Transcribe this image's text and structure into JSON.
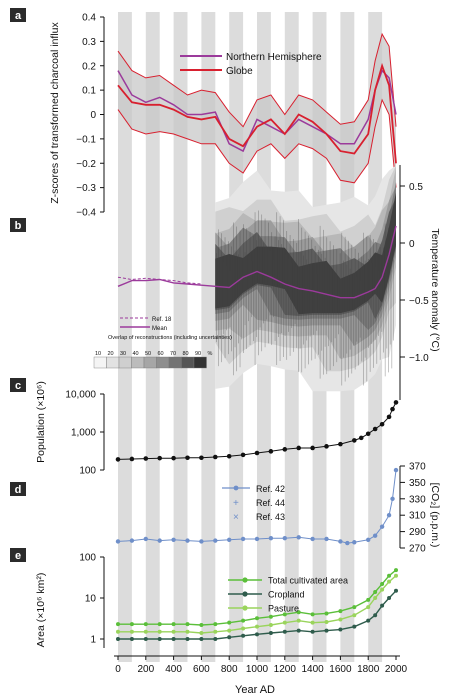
{
  "colors": {
    "nh": "#9b3a9b",
    "globe": "#d8202f",
    "band": "#c8c8c8",
    "pop": "#111111",
    "co2": "#6f8fc9",
    "total": "#5bbf3a",
    "crop": "#2f5c4c",
    "pasture": "#9ad45c",
    "panel_label_bg": "#2b2b2b",
    "stripe": "#dcdcdc"
  },
  "chart_data": [
    {
      "panel": "a",
      "type": "line",
      "ylabel": "Z-scores of transformed charcoal influx",
      "ylim": [
        -0.4,
        0.4
      ],
      "yticks": [
        "0.4",
        "0.3",
        "0.2",
        "0.1",
        "0",
        "−0.1",
        "−0.2",
        "−0.3",
        "−0.4"
      ],
      "legend": [
        "Northern Hemisphere",
        "Globe"
      ],
      "x": [
        0,
        100,
        200,
        300,
        400,
        500,
        600,
        700,
        800,
        900,
        1000,
        1100,
        1200,
        1300,
        1400,
        1500,
        1600,
        1700,
        1800,
        1850,
        1900,
        1950,
        2000
      ],
      "series": [
        {
          "name": "Northern Hemisphere",
          "values": [
            0.18,
            0.08,
            0.05,
            0.07,
            0.04,
            0.0,
            0.0,
            0.01,
            -0.12,
            -0.15,
            -0.02,
            -0.05,
            -0.08,
            -0.02,
            -0.05,
            -0.08,
            -0.12,
            -0.12,
            -0.02,
            0.1,
            0.18,
            0.15,
            0.0
          ]
        },
        {
          "name": "Globe",
          "values": [
            0.12,
            0.05,
            0.04,
            0.04,
            0.02,
            -0.01,
            -0.02,
            -0.01,
            -0.1,
            -0.13,
            -0.05,
            -0.02,
            -0.08,
            0.0,
            -0.03,
            -0.08,
            -0.15,
            -0.16,
            -0.08,
            0.1,
            0.2,
            0.12,
            -0.2
          ]
        },
        {
          "name": "upper",
          "values": [
            0.26,
            0.18,
            0.15,
            0.16,
            0.12,
            0.08,
            0.1,
            0.09,
            0.01,
            -0.05,
            0.06,
            0.08,
            0.0,
            0.08,
            0.06,
            0.01,
            -0.04,
            -0.03,
            0.06,
            0.22,
            0.33,
            0.28,
            -0.05
          ]
        },
        {
          "name": "lower",
          "values": [
            0.02,
            -0.06,
            -0.08,
            -0.07,
            -0.08,
            -0.1,
            -0.12,
            -0.12,
            -0.2,
            -0.24,
            -0.15,
            -0.12,
            -0.18,
            -0.12,
            -0.14,
            -0.18,
            -0.27,
            -0.28,
            -0.2,
            -0.05,
            0.06,
            0.0,
            -0.3
          ]
        }
      ]
    },
    {
      "panel": "b",
      "type": "area",
      "ylabel": "Temperature anomaly (°C)",
      "ylim": [
        -1.3,
        0.7
      ],
      "yticks": [
        "0.5",
        "0",
        "−0.5",
        "−1.0"
      ],
      "legend_ref": "Ref. 18",
      "legend_mean": "Mean",
      "legend_overlap": "Overlap of reconstructions (including uncertainties)",
      "scale_labels": [
        "10",
        "20",
        "30",
        "40",
        "50",
        "60",
        "70",
        "80",
        "90",
        "%"
      ],
      "x": [
        0,
        100,
        200,
        300,
        400,
        500,
        600,
        700,
        800,
        900,
        1000,
        1100,
        1200,
        1300,
        1400,
        1500,
        1600,
        1700,
        1800,
        1850,
        1900,
        1950,
        2000
      ],
      "mean": [
        -0.38,
        -0.33,
        -0.33,
        -0.32,
        -0.35,
        -0.36,
        -0.37,
        -0.38,
        -0.39,
        -0.3,
        -0.25,
        -0.3,
        -0.36,
        -0.4,
        -0.42,
        -0.45,
        -0.48,
        -0.48,
        -0.43,
        -0.4,
        -0.3,
        -0.1,
        0.15
      ]
    },
    {
      "panel": "c",
      "type": "scatter",
      "ylabel": "Population (×10⁶)",
      "scale": "log",
      "ylim": [
        100,
        10000
      ],
      "yticks": [
        "10,000",
        "1,000",
        "100"
      ],
      "x": [
        0,
        100,
        200,
        300,
        400,
        500,
        600,
        700,
        800,
        900,
        1000,
        1100,
        1200,
        1300,
        1400,
        1500,
        1600,
        1700,
        1750,
        1800,
        1850,
        1900,
        1950,
        1975,
        2000
      ],
      "values": [
        190,
        195,
        200,
        205,
        205,
        210,
        210,
        220,
        230,
        250,
        280,
        310,
        350,
        380,
        380,
        420,
        480,
        600,
        700,
        900,
        1200,
        1600,
        2500,
        4000,
        6000
      ]
    },
    {
      "panel": "d",
      "type": "scatter",
      "ylabel": "[CO₂] (p.p.m.)",
      "ylim": [
        270,
        370
      ],
      "yticks": [
        "370",
        "350",
        "330",
        "310",
        "290",
        "270"
      ],
      "legend": [
        "Ref. 42",
        "Ref. 44",
        "Ref. 43"
      ],
      "x": [
        0,
        100,
        200,
        300,
        400,
        500,
        600,
        700,
        800,
        900,
        1000,
        1100,
        1200,
        1300,
        1400,
        1500,
        1600,
        1650,
        1700,
        1800,
        1850,
        1900,
        1950,
        1975,
        2000
      ],
      "values": [
        278,
        279,
        281,
        279,
        280,
        279,
        278,
        279,
        280,
        281,
        281,
        282,
        282,
        283,
        281,
        281,
        278,
        276,
        277,
        280,
        285,
        296,
        310,
        330,
        365
      ]
    },
    {
      "panel": "e",
      "type": "line",
      "ylabel": "Area (×10⁶ km²)",
      "scale": "log",
      "ylim": [
        0.7,
        100
      ],
      "yticks": [
        "100",
        "10",
        "1"
      ],
      "xlabel": "Year AD",
      "xticks": [
        "0",
        "200",
        "400",
        "600",
        "800",
        "1000",
        "1200",
        "1400",
        "1600",
        "1800",
        "2000"
      ],
      "legend": [
        "Total cultivated area",
        "Cropland",
        "Pasture"
      ],
      "x": [
        0,
        100,
        200,
        300,
        400,
        500,
        600,
        700,
        800,
        900,
        1000,
        1100,
        1200,
        1300,
        1400,
        1500,
        1600,
        1700,
        1800,
        1850,
        1900,
        1950,
        2000
      ],
      "series": [
        {
          "name": "Total cultivated area",
          "values": [
            2.3,
            2.3,
            2.3,
            2.3,
            2.3,
            2.3,
            2.2,
            2.3,
            2.5,
            2.8,
            3.2,
            3.5,
            4.0,
            4.5,
            4.0,
            4.2,
            4.8,
            6.0,
            9.0,
            14,
            22,
            35,
            48
          ]
        },
        {
          "name": "Cropland",
          "values": [
            1.0,
            1.0,
            1.0,
            1.0,
            1.0,
            1.0,
            1.0,
            1.0,
            1.1,
            1.2,
            1.3,
            1.4,
            1.5,
            1.6,
            1.5,
            1.6,
            1.7,
            2.0,
            2.8,
            3.8,
            6.5,
            10,
            15
          ]
        },
        {
          "name": "Pasture",
          "values": [
            1.5,
            1.5,
            1.5,
            1.5,
            1.5,
            1.5,
            1.4,
            1.5,
            1.6,
            1.8,
            2.0,
            2.2,
            2.5,
            2.8,
            2.5,
            2.6,
            3.0,
            3.8,
            6.0,
            10,
            16,
            25,
            35
          ]
        }
      ]
    }
  ]
}
